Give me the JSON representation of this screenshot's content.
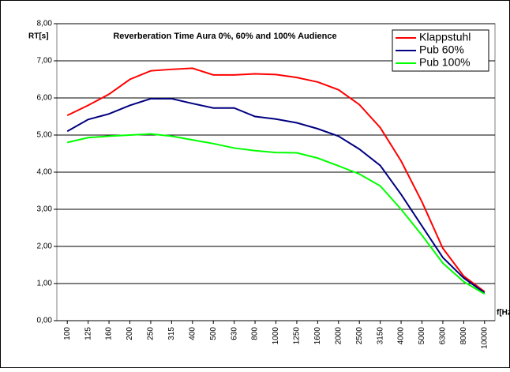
{
  "chart_data": {
    "type": "line",
    "title": "Reverberation Time Aura 0%, 60% and 100% Audience",
    "y_label": "RT[s]",
    "x_label": "f[Hz]",
    "categories": [
      "100",
      "125",
      "160",
      "200",
      "250",
      "315",
      "400",
      "500",
      "630",
      "800",
      "1000",
      "1250",
      "1600",
      "2000",
      "2500",
      "3150",
      "4000",
      "5000",
      "6300",
      "8000",
      "10000"
    ],
    "series": [
      {
        "name": "Klappstuhl",
        "color": "#ff0000",
        "values": [
          5.53,
          5.8,
          6.1,
          6.5,
          6.73,
          6.77,
          6.8,
          6.62,
          6.62,
          6.65,
          6.63,
          6.55,
          6.43,
          6.22,
          5.82,
          5.2,
          4.3,
          3.2,
          1.95,
          1.2,
          0.78
        ]
      },
      {
        "name": "Pub 60%",
        "color": "#000080",
        "values": [
          5.1,
          5.42,
          5.57,
          5.8,
          5.98,
          5.98,
          5.85,
          5.73,
          5.73,
          5.5,
          5.43,
          5.33,
          5.17,
          4.97,
          4.62,
          4.18,
          3.4,
          2.55,
          1.7,
          1.15,
          0.75
        ]
      },
      {
        "name": "Pub 100%",
        "color": "#00ff00",
        "values": [
          4.8,
          4.93,
          4.97,
          5.0,
          5.03,
          4.97,
          4.87,
          4.77,
          4.65,
          4.58,
          4.53,
          4.52,
          4.38,
          4.17,
          3.95,
          3.63,
          3.0,
          2.3,
          1.55,
          1.05,
          0.72
        ]
      }
    ],
    "ylim": [
      0,
      8
    ],
    "yticks": [
      {
        "value": 0,
        "label": "0,00"
      },
      {
        "value": 1,
        "label": "1,00"
      },
      {
        "value": 2,
        "label": "2,00"
      },
      {
        "value": 3,
        "label": "3,00"
      },
      {
        "value": 4,
        "label": "4,00"
      },
      {
        "value": 5,
        "label": "5,00"
      },
      {
        "value": 6,
        "label": "6,00"
      },
      {
        "value": 7,
        "label": "7,00"
      },
      {
        "value": 8,
        "label": "8,00"
      }
    ],
    "grid": true,
    "legend": "top-right"
  }
}
